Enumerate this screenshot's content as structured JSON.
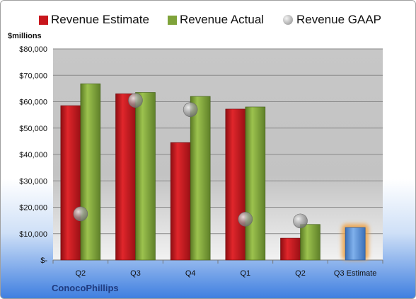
{
  "chart_data": {
    "type": "bar",
    "categories": [
      "Q2",
      "Q3",
      "Q4",
      "Q1",
      "Q2",
      "Q3 Estimate"
    ],
    "series": [
      {
        "name": "Revenue Estimate",
        "values": [
          58500,
          63000,
          44500,
          57200,
          8300,
          12300
        ],
        "color": "#c8161d"
      },
      {
        "name": "Revenue Actual",
        "values": [
          66800,
          63500,
          62000,
          58000,
          13500,
          null
        ],
        "color": "#7fa33a"
      },
      {
        "name": "Revenue GAAP",
        "values": [
          17500,
          60500,
          57000,
          15500,
          14800,
          null
        ],
        "color": "#a8a8a8"
      }
    ],
    "estimate_highlight": {
      "category": "Q3 Estimate",
      "bar_color": "#5f93d6",
      "glow_color": "#f0a040"
    },
    "ylim": [
      0,
      80000
    ],
    "yticks": [
      0,
      10000,
      20000,
      30000,
      40000,
      50000,
      60000,
      70000,
      80000
    ],
    "ytick_labels": [
      "$-",
      "$10,000",
      "$20,000",
      "$30,000",
      "$40,000",
      "$50,000",
      "$60,000",
      "$70,000",
      "$80,000"
    ],
    "ylabel": "$millions",
    "company": "ConocoPhillips",
    "legend_position": "top",
    "grid": true
  }
}
